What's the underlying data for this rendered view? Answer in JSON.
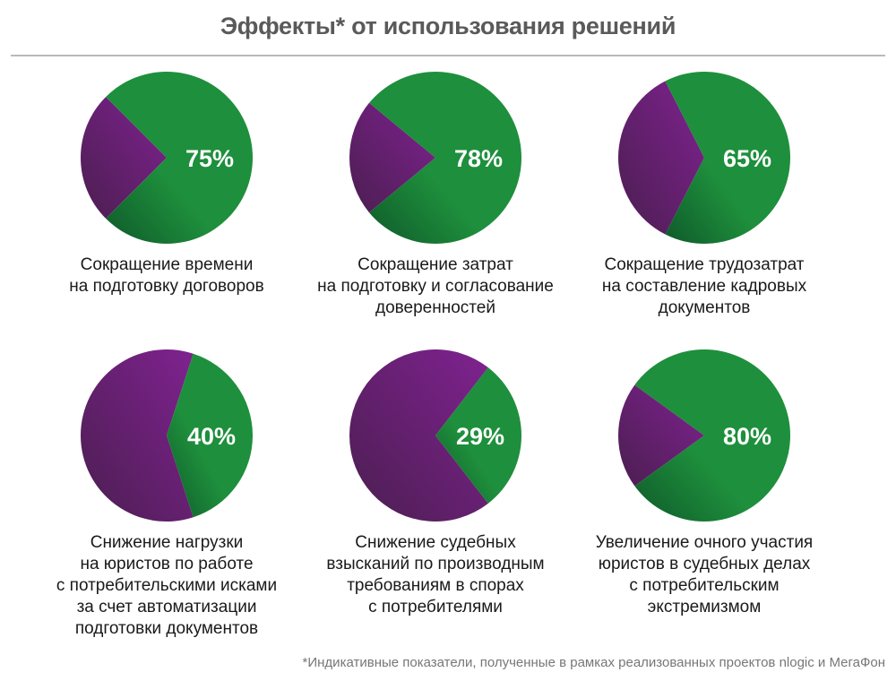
{
  "title": "Эффекты* от использования решений",
  "footnote": "*Индикативные показатели, полученные в рамках реализованных проектов nlogic и МегаФон",
  "colors": {
    "green_light": "#1e8f3c",
    "green_dark": "#0f5a2a",
    "purple_light": "#7f2290",
    "purple_dark": "#4b1e50",
    "title": "#5a5a5a"
  },
  "chart_data": [
    {
      "type": "pie",
      "values": [
        75,
        25
      ],
      "label": "75%",
      "caption": "Сокращение времени\nна подготовку договоров"
    },
    {
      "type": "pie",
      "values": [
        78,
        22
      ],
      "label": "78%",
      "caption": "Сокращение затрат\nна подготовку и согласование\nдоверенностей"
    },
    {
      "type": "pie",
      "values": [
        65,
        35
      ],
      "label": "65%",
      "caption": "Сокращение трудозатрат\nна составление кадровых\nдокументов"
    },
    {
      "type": "pie",
      "values": [
        40,
        60
      ],
      "label": "40%",
      "caption": "Снижение нагрузки\nна юристов по работе\nс потребительскими исками\nза счет автоматизации\nподготовки документов"
    },
    {
      "type": "pie",
      "values": [
        29,
        71
      ],
      "label": "29%",
      "caption": "Снижение судебных\nвзысканий по производным\nтребованиям в спорах\nс потребителями"
    },
    {
      "type": "pie",
      "values": [
        80,
        20
      ],
      "label": "80%",
      "caption": "Увеличение очного участия\nюристов в судебных делах\nс потребительским\nэкстремизмом"
    }
  ]
}
